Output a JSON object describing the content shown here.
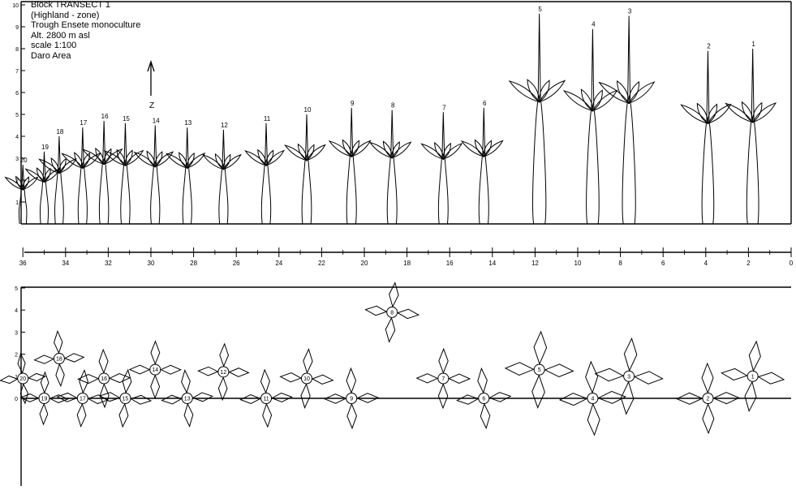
{
  "legend": {
    "lines": [
      "Block TRANSECT 1",
      "(Highland - zone)",
      "Trough Ensete monoculture",
      "Alt. 2800 m asl",
      "scale 1:100",
      "Daro Area"
    ],
    "axis_marker": "Z"
  },
  "top_panel": {
    "y_ticks": [
      "1",
      "2",
      "3",
      "4",
      "5",
      "6",
      "7",
      "8",
      "9",
      "10"
    ]
  },
  "x_axis": {
    "tick_labels": [
      "36",
      "34",
      "32",
      "30",
      "28",
      "26",
      "24",
      "22",
      "20",
      "18",
      "16",
      "14",
      "12",
      "10",
      "8",
      "6",
      "4",
      "2",
      "0"
    ]
  },
  "bottom_panel": {
    "y_ticks": [
      "0",
      "1",
      "2",
      "3",
      "4",
      "5"
    ]
  },
  "plants": [
    {
      "id": "1",
      "x": 1.8,
      "y": 1.0,
      "h": 8.0
    },
    {
      "id": "2",
      "x": 3.9,
      "y": 0.0,
      "h": 7.9
    },
    {
      "id": "3",
      "x": 7.6,
      "y": 1.0,
      "h": 9.5
    },
    {
      "id": "4",
      "x": 9.3,
      "y": 0.0,
      "h": 8.9
    },
    {
      "id": "5",
      "x": 11.8,
      "y": 1.3,
      "h": 9.6
    },
    {
      "id": "6",
      "x": 14.4,
      "y": 0.0,
      "h": 5.3
    },
    {
      "id": "7",
      "x": 16.3,
      "y": 0.9,
      "h": 5.1
    },
    {
      "id": "8",
      "x": 18.7,
      "y": 3.9,
      "h": 5.2
    },
    {
      "id": "9",
      "x": 20.6,
      "y": 0.0,
      "h": 5.3
    },
    {
      "id": "10",
      "x": 22.7,
      "y": 0.9,
      "h": 5.0
    },
    {
      "id": "11",
      "x": 24.6,
      "y": 0.0,
      "h": 4.6
    },
    {
      "id": "12",
      "x": 26.6,
      "y": 1.2,
      "h": 4.3
    },
    {
      "id": "13",
      "x": 28.3,
      "y": 0.0,
      "h": 4.4
    },
    {
      "id": "14",
      "x": 29.8,
      "y": 1.3,
      "h": 4.5
    },
    {
      "id": "15",
      "x": 31.2,
      "y": 0.0,
      "h": 4.6
    },
    {
      "id": "16",
      "x": 32.2,
      "y": 0.9,
      "h": 4.7
    },
    {
      "id": "17",
      "x": 33.2,
      "y": 0.0,
      "h": 4.4
    },
    {
      "id": "18",
      "x": 34.3,
      "y": 1.8,
      "h": 4.0
    },
    {
      "id": "19",
      "x": 35.0,
      "y": 0.0,
      "h": 3.3
    },
    {
      "id": "20",
      "x": 36.0,
      "y": 0.9,
      "h": 2.7
    }
  ]
}
